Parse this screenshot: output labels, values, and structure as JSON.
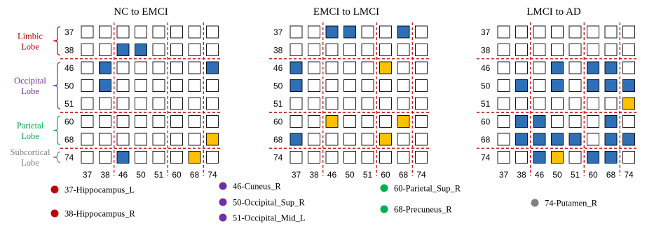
{
  "colors": {
    "blue": "#2e6fb6",
    "orange": "#ffc000",
    "divider": "#c00000",
    "limbic": "#c00000",
    "occipital": "#7030a0",
    "parietal": "#00b050",
    "subcortical": "#7f7f7f"
  },
  "regions": [
    "37",
    "38",
    "46",
    "50",
    "51",
    "60",
    "68",
    "74"
  ],
  "lobes": [
    {
      "name_line1": "Limbic",
      "name_line2": "Lobe",
      "color_key": "limbic",
      "rows": [
        "37",
        "38"
      ]
    },
    {
      "name_line1": "Occipital",
      "name_line2": "Lobe",
      "color_key": "occipital",
      "rows": [
        "46",
        "50",
        "51"
      ]
    },
    {
      "name_line1": "Parietal",
      "name_line2": "Lobe",
      "color_key": "parietal",
      "rows": [
        "60",
        "68"
      ]
    },
    {
      "name_line1": "Subcortical",
      "name_line2": "Lobe",
      "color_key": "subcortical",
      "rows": [
        "74"
      ]
    }
  ],
  "matrices": [
    {
      "title": "NC to EMCI",
      "cells": [
        [
          0,
          0,
          0,
          0,
          0,
          0,
          0,
          0
        ],
        [
          0,
          0,
          1,
          1,
          0,
          0,
          0,
          0
        ],
        [
          0,
          1,
          0,
          0,
          0,
          0,
          0,
          1
        ],
        [
          0,
          1,
          0,
          0,
          0,
          0,
          0,
          0
        ],
        [
          0,
          0,
          0,
          0,
          0,
          0,
          0,
          0
        ],
        [
          0,
          0,
          0,
          0,
          0,
          0,
          0,
          0
        ],
        [
          0,
          0,
          0,
          0,
          0,
          0,
          0,
          2
        ],
        [
          0,
          0,
          1,
          0,
          0,
          0,
          2,
          0
        ]
      ]
    },
    {
      "title": "EMCI to LMCI",
      "cells": [
        [
          0,
          0,
          1,
          1,
          0,
          0,
          1,
          0
        ],
        [
          0,
          0,
          0,
          0,
          0,
          0,
          0,
          0
        ],
        [
          1,
          0,
          0,
          0,
          0,
          2,
          0,
          0
        ],
        [
          1,
          0,
          0,
          0,
          0,
          0,
          0,
          0
        ],
        [
          0,
          0,
          0,
          0,
          0,
          0,
          0,
          0
        ],
        [
          0,
          0,
          2,
          0,
          0,
          0,
          2,
          0
        ],
        [
          1,
          0,
          0,
          0,
          0,
          2,
          0,
          0
        ],
        [
          0,
          0,
          0,
          0,
          0,
          0,
          0,
          0
        ]
      ]
    },
    {
      "title": "LMCI to AD",
      "cells": [
        [
          0,
          0,
          0,
          0,
          0,
          0,
          0,
          0
        ],
        [
          0,
          0,
          0,
          0,
          0,
          0,
          0,
          0
        ],
        [
          0,
          0,
          0,
          1,
          0,
          1,
          1,
          0
        ],
        [
          0,
          1,
          0,
          1,
          0,
          1,
          1,
          1
        ],
        [
          0,
          0,
          0,
          0,
          0,
          0,
          0,
          2
        ],
        [
          0,
          1,
          1,
          0,
          0,
          0,
          1,
          0
        ],
        [
          0,
          1,
          1,
          1,
          1,
          0,
          1,
          1
        ],
        [
          0,
          0,
          1,
          2,
          0,
          1,
          1,
          0
        ]
      ]
    }
  ],
  "legend": [
    {
      "label": "37-Hippocampus_L",
      "color_key": "limbic"
    },
    {
      "label": "38-Hippocampus_R",
      "color_key": "limbic"
    },
    {
      "label": "46-Cuneus_R",
      "color_key": "occipital"
    },
    {
      "label": "50-Occipital_Sup_R",
      "color_key": "occipital"
    },
    {
      "label": "51-Occipital_Mid_L",
      "color_key": "occipital"
    },
    {
      "label": "60-Parietal_Sup_R",
      "color_key": "parietal"
    },
    {
      "label": "68-Precuneus_R",
      "color_key": "parietal"
    },
    {
      "label": "74-Putamen_R",
      "color_key": "subcortical"
    }
  ]
}
